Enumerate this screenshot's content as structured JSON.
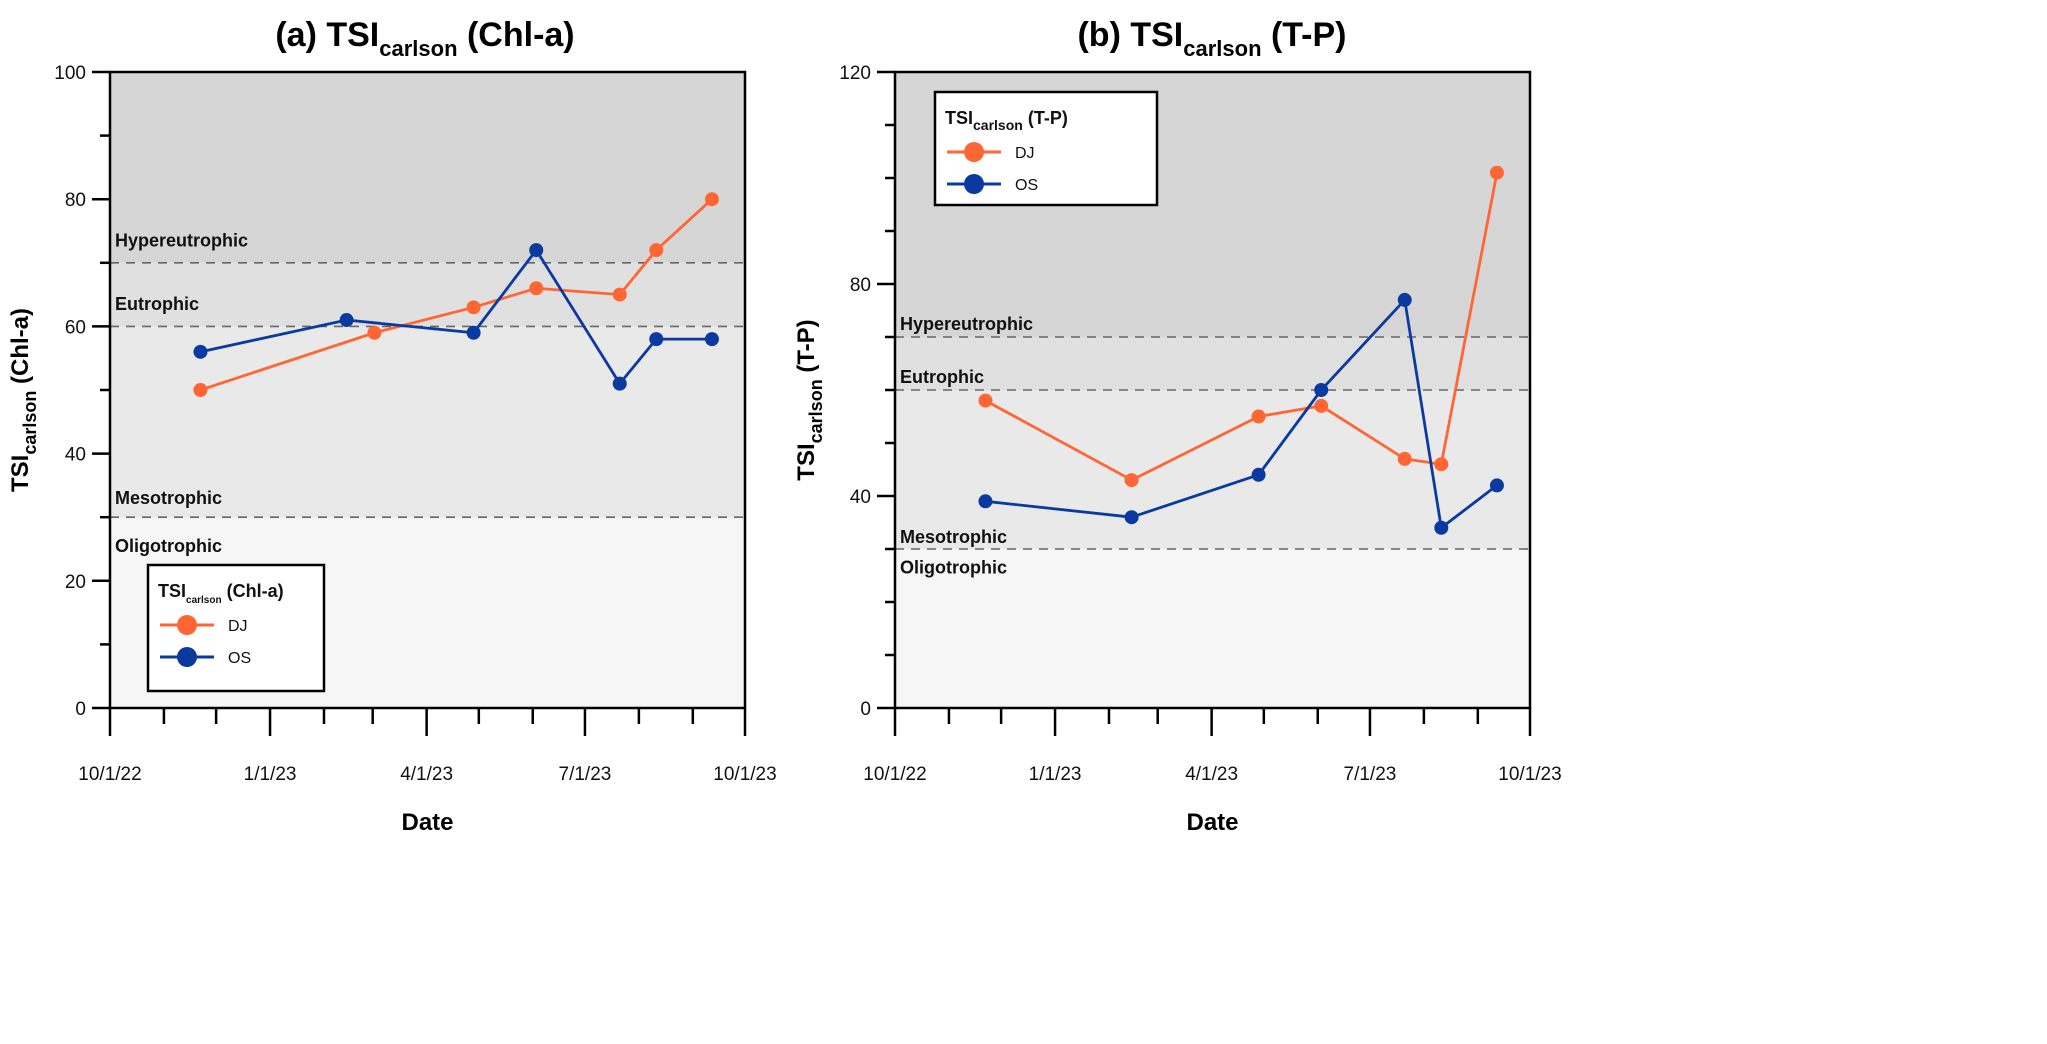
{
  "chart_data": [
    {
      "type": "line",
      "panel": "(a)",
      "title": "TSI",
      "title_sub": "carlson",
      "title_suffix": "(Chl-a)",
      "xlabel": "Date",
      "ylabel": "TSI",
      "ylabel_sub": "carlson",
      "ylabel_suffix": "(Chl-a)",
      "ylim": [
        0,
        100
      ],
      "yticks": [
        0,
        20,
        40,
        60,
        80,
        100
      ],
      "yminor_step": 10,
      "xlim": [
        "2022-10-01",
        "2023-10-01"
      ],
      "xticks": [
        {
          "date": "2022-10-01",
          "label": "10/1/22"
        },
        {
          "date": "2023-01-01",
          "label": "1/1/23"
        },
        {
          "date": "2023-04-01",
          "label": "4/1/23"
        },
        {
          "date": "2023-07-01",
          "label": "7/1/23"
        },
        {
          "date": "2023-10-01",
          "label": "10/1/23"
        }
      ],
      "xminor": [
        "2022-11-01",
        "2022-12-01",
        "2023-02-01",
        "2023-03-01",
        "2023-05-01",
        "2023-06-01",
        "2023-08-01",
        "2023-09-01"
      ],
      "zones": [
        {
          "label": "Hypereutrophic",
          "from": 70,
          "to": 100,
          "color": "#d6d6d6"
        },
        {
          "label": "Eutrophic",
          "from": 60,
          "to": 70,
          "color": "#e0e0e0"
        },
        {
          "label": "Mesotrophic",
          "from": 30,
          "to": 60,
          "color": "#e9e9e9"
        },
        {
          "label": "Oligotrophic",
          "from": 0,
          "to": 30,
          "color": "#f6f6f6"
        }
      ],
      "thresholds": [
        70,
        60,
        30
      ],
      "zone_labels": [
        {
          "text": "Hypereutrophic",
          "y": 73.5
        },
        {
          "text": "Eutrophic",
          "y": 63.5
        },
        {
          "text": "Mesotrophic",
          "y": 33
        },
        {
          "text": "Oligotrophic",
          "y": 25.5
        }
      ],
      "legend": {
        "title": "TSI",
        "title_sub": "carlson",
        "title_suffix": "(Chl-a)",
        "placement": "bottom-left"
      },
      "series": [
        {
          "name": "DJ",
          "color": "#ff6633",
          "x": [
            "2022-11-22",
            "2023-03-02",
            "2023-04-28",
            "2023-06-03",
            "2023-07-21",
            "2023-08-11",
            "2023-09-12"
          ],
          "values": [
            50,
            59,
            63,
            66,
            65,
            72,
            80
          ]
        },
        {
          "name": "OS",
          "color": "#0a3aa0",
          "x": [
            "2022-11-22",
            "2023-02-14",
            "2023-04-28",
            "2023-06-03",
            "2023-07-21",
            "2023-08-11",
            "2023-09-12"
          ],
          "values": [
            56,
            61,
            59,
            72,
            51,
            58,
            58
          ]
        }
      ]
    },
    {
      "type": "line",
      "panel": "(b)",
      "title": "TSI",
      "title_sub": "carlson",
      "title_suffix": "(T-P)",
      "xlabel": "Date",
      "ylabel": "TSI",
      "ylabel_sub": "carlson",
      "ylabel_suffix": "(T-P)",
      "ylim": [
        0,
        120
      ],
      "yticks": [
        0,
        40,
        80,
        120
      ],
      "yminor_step": 10,
      "xlim": [
        "2022-10-01",
        "2023-10-01"
      ],
      "xticks": [
        {
          "date": "2022-10-01",
          "label": "10/1/22"
        },
        {
          "date": "2023-01-01",
          "label": "1/1/23"
        },
        {
          "date": "2023-04-01",
          "label": "4/1/23"
        },
        {
          "date": "2023-07-01",
          "label": "7/1/23"
        },
        {
          "date": "2023-10-01",
          "label": "10/1/23"
        }
      ],
      "xminor": [
        "2022-11-01",
        "2022-12-01",
        "2023-02-01",
        "2023-03-01",
        "2023-05-01",
        "2023-06-01",
        "2023-08-01",
        "2023-09-01"
      ],
      "zones": [
        {
          "label": "Hypereutrophic",
          "from": 70,
          "to": 120,
          "color": "#d6d6d6"
        },
        {
          "label": "Eutrophic",
          "from": 60,
          "to": 70,
          "color": "#e0e0e0"
        },
        {
          "label": "Mesotrophic",
          "from": 30,
          "to": 60,
          "color": "#e9e9e9"
        },
        {
          "label": "Oligotrophic",
          "from": 0,
          "to": 30,
          "color": "#f6f6f6"
        }
      ],
      "thresholds": [
        70,
        60,
        30
      ],
      "zone_labels": [
        {
          "text": "Hypereutrophic",
          "y": 72.5
        },
        {
          "text": "Eutrophic",
          "y": 62.5
        },
        {
          "text": "Mesotrophic",
          "y": 32.3
        },
        {
          "text": "Oligotrophic",
          "y": 26.5
        }
      ],
      "legend": {
        "title": "TSI",
        "title_sub": "carlson",
        "title_suffix": "(T-P)",
        "placement": "top-left"
      },
      "series": [
        {
          "name": "DJ",
          "color": "#ff6633",
          "x": [
            "2022-11-22",
            "2023-02-14",
            "2023-04-28",
            "2023-06-03",
            "2023-07-21",
            "2023-08-11",
            "2023-09-12"
          ],
          "values": [
            58,
            43,
            55,
            57,
            47,
            46,
            101
          ]
        },
        {
          "name": "OS",
          "color": "#0a3aa0",
          "x": [
            "2022-11-22",
            "2023-02-14",
            "2023-04-28",
            "2023-06-03",
            "2023-07-21",
            "2023-08-11",
            "2023-09-12"
          ],
          "values": [
            39,
            36,
            44,
            60,
            77,
            34,
            42
          ]
        }
      ]
    }
  ]
}
